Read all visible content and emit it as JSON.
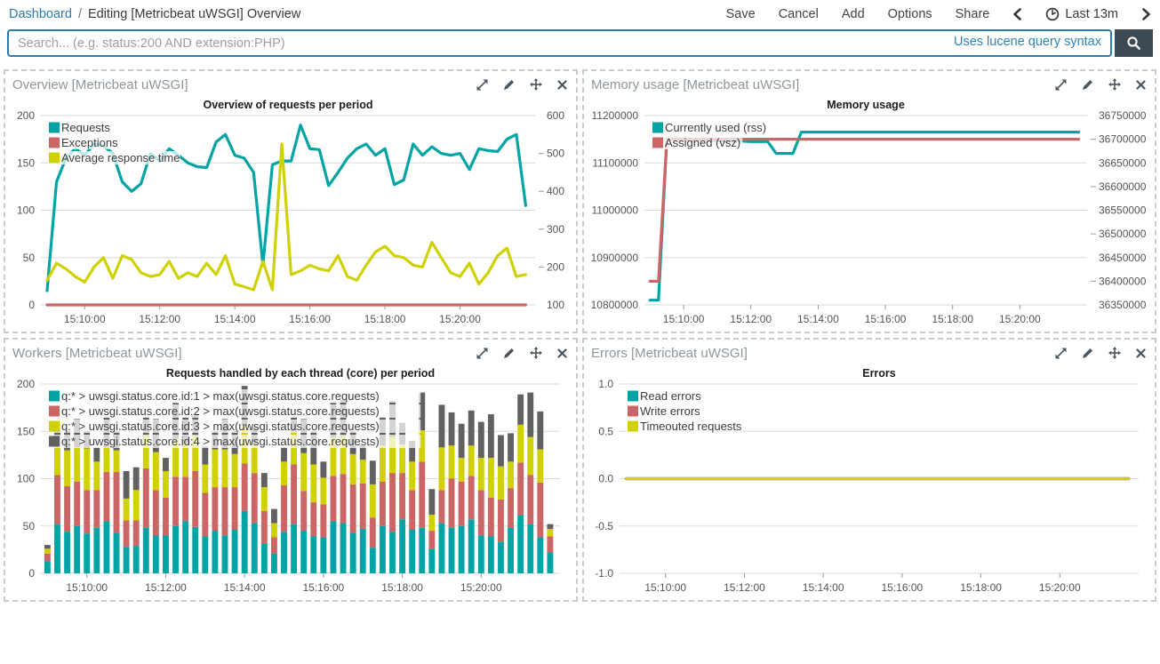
{
  "topnav": {
    "breadcrumb": {
      "root": "Dashboard",
      "separator": "/",
      "current": "Editing [Metricbeat uWSGI] Overview"
    },
    "actions": [
      "Save",
      "Cancel",
      "Add",
      "Options",
      "Share"
    ],
    "time_label": "Last 13m"
  },
  "search": {
    "placeholder": "Search... (e.g. status:200 AND extension:PHP)",
    "hint": "Uses lucene query syntax"
  },
  "colors": {
    "link_blue": "#2a7ab0",
    "search_border": "#2d7cb0",
    "search_button_bg": "#3e4a53",
    "panel_title_gray": "#8e979e",
    "series_teal": "#01A4A4",
    "series_red": "#CC6666",
    "series_yellow": "#D0D102",
    "series_gray": "#616161"
  },
  "panels": [
    {
      "title": "Overview [Metricbeat uWSGI]"
    },
    {
      "title": "Memory usage [Metricbeat uWSGI]"
    },
    {
      "title": "Workers [Metricbeat uWSGI]"
    },
    {
      "title": "Errors [Metricbeat uWSGI]"
    }
  ],
  "chart_data": [
    {
      "type": "line",
      "title": "Overview of requests per period",
      "x_start": "15:09:00",
      "interval_s": 15,
      "x_domain": [
        "15:08:50",
        "15:22:00"
      ],
      "x_ticks": [
        "15:10:00",
        "15:12:00",
        "15:14:00",
        "15:16:00",
        "15:18:00",
        "15:20:00"
      ],
      "grid": true,
      "legend_position": "top-left",
      "layout": {
        "margins": {
          "t": 22,
          "r": 46,
          "b": 30,
          "l": 40
        }
      },
      "axes": {
        "left": {
          "min": 0,
          "max": 200,
          "ticks": [
            0,
            50,
            100,
            150,
            200
          ],
          "decimals": 0
        },
        "right": {
          "min": 100,
          "max": 600,
          "ticks": [
            100,
            200,
            300,
            400,
            500,
            600
          ],
          "decimals": 0
        }
      },
      "series": [
        {
          "name": "Requests",
          "color": "#01A4A4",
          "axis": "left",
          "values": [
            15,
            130,
            155,
            165,
            158,
            170,
            168,
            160,
            130,
            120,
            128,
            160,
            152,
            165,
            158,
            150,
            146,
            145,
            172,
            180,
            158,
            155,
            140,
            42,
            148,
            152,
            152,
            190,
            165,
            164,
            126,
            140,
            155,
            165,
            170,
            158,
            165,
            127,
            132,
            170,
            158,
            167,
            160,
            158,
            160,
            143,
            165,
            163,
            162,
            175,
            180,
            105
          ]
        },
        {
          "name": "Exceptions",
          "color": "#CC6666",
          "axis": "left",
          "values": [
            0,
            0,
            0,
            0,
            0,
            0,
            0,
            0,
            0,
            0,
            0,
            0,
            0,
            0,
            0,
            0,
            0,
            0,
            0,
            0,
            0,
            0,
            0,
            0,
            0,
            0,
            0,
            0,
            0,
            0,
            0,
            0,
            0,
            0,
            0,
            0,
            0,
            0,
            0,
            0,
            0,
            0,
            0,
            0,
            0,
            0,
            0,
            0,
            0,
            0,
            0,
            0
          ]
        },
        {
          "name": "Average response time",
          "color": "#D0D102",
          "axis": "right",
          "values": [
            165,
            210,
            195,
            175,
            160,
            200,
            225,
            170,
            230,
            220,
            185,
            175,
            180,
            215,
            170,
            185,
            175,
            210,
            180,
            230,
            155,
            148,
            140,
            215,
            140,
            525,
            180,
            190,
            205,
            195,
            190,
            230,
            175,
            165,
            205,
            240,
            255,
            230,
            225,
            205,
            200,
            265,
            225,
            185,
            175,
            210,
            155,
            185,
            230,
            250,
            175,
            180
          ]
        }
      ]
    },
    {
      "type": "line",
      "title": "Memory usage",
      "x_start": "15:09:00",
      "interval_s": 15,
      "x_domain": [
        "15:08:50",
        "15:22:00"
      ],
      "x_ticks": [
        "15:10:00",
        "15:12:00",
        "15:14:00",
        "15:16:00",
        "15:18:00",
        "15:20:00"
      ],
      "grid": true,
      "legend_position": "top-left",
      "layout": {
        "margins": {
          "t": 22,
          "r": 76,
          "b": 30,
          "l": 68
        }
      },
      "axes": {
        "left": {
          "min": 10800000,
          "max": 11200000,
          "ticks": [
            10800000,
            10900000,
            11000000,
            11100000,
            11200000
          ],
          "decimals": 0
        },
        "right": {
          "min": 36350000,
          "max": 36750000,
          "ticks": [
            36350000,
            36400000,
            36450000,
            36500000,
            36550000,
            36600000,
            36650000,
            36700000,
            36750000
          ],
          "decimals": 0
        }
      },
      "series": [
        {
          "name": "Currently used (rss)",
          "color": "#01A4A4",
          "axis": "left",
          "values": [
            10810000,
            10810000,
            11150000,
            11150000,
            11149000,
            11148000,
            11148000,
            11147000,
            11147000,
            11146000,
            11146000,
            11146000,
            11145000,
            11145000,
            11145000,
            11120000,
            11120000,
            11120000,
            11165000,
            11165000,
            11165000,
            11165000,
            11165000,
            11165000,
            11165000,
            11165000,
            11165000,
            11165000,
            11165000,
            11165000,
            11165000,
            11165000,
            11165000,
            11165000,
            11165000,
            11165000,
            11165000,
            11165000,
            11165000,
            11165000,
            11165000,
            11165000,
            11165000,
            11165000,
            11165000,
            11165000,
            11165000,
            11165000,
            11165000,
            11165000,
            11165000,
            11165000
          ]
        },
        {
          "name": "Assigned (vsz)",
          "color": "#CC6666",
          "axis": "right",
          "values": [
            36400000,
            36400000,
            36700000,
            36700000,
            36700000,
            36700000,
            36700000,
            36700000,
            36700000,
            36700000,
            36700000,
            36700000,
            36700000,
            36700000,
            36700000,
            36700000,
            36700000,
            36700000,
            36700000,
            36700000,
            36700000,
            36700000,
            36700000,
            36700000,
            36700000,
            36700000,
            36700000,
            36700000,
            36700000,
            36700000,
            36700000,
            36700000,
            36700000,
            36700000,
            36700000,
            36700000,
            36700000,
            36700000,
            36700000,
            36700000,
            36700000,
            36700000,
            36700000,
            36700000,
            36700000,
            36700000,
            36700000,
            36700000,
            36700000,
            36700000,
            36700000,
            36700000
          ]
        }
      ]
    },
    {
      "type": "bar",
      "title": "Requests handled by each thread (core) per period",
      "x_start": "15:09:00",
      "interval_s": 15,
      "x_domain": [
        "15:08:50",
        "15:22:00"
      ],
      "x_ticks": [
        "15:10:00",
        "15:12:00",
        "15:14:00",
        "15:16:00",
        "15:18:00",
        "15:20:00"
      ],
      "grid": true,
      "stacked": true,
      "legend_position": "top-left",
      "layout": {
        "margins": {
          "t": 22,
          "r": 18,
          "b": 30,
          "l": 40
        }
      },
      "axes": {
        "left": {
          "min": 0,
          "max": 200,
          "ticks": [
            0,
            50,
            100,
            150,
            200
          ],
          "decimals": 0
        }
      },
      "series": [
        {
          "name": "q:* > uwsgi.status.core.id:1 > max(uwsgi.status.core.requests)",
          "color": "#01A4A4",
          "axis": "left",
          "values": [
            13,
            52,
            44,
            50,
            42,
            48,
            55,
            43,
            28,
            29,
            48,
            40,
            40,
            50,
            55,
            49,
            39,
            45,
            40,
            46,
            66,
            53,
            31,
            21,
            44,
            52,
            45,
            39,
            38,
            55,
            53,
            43,
            47,
            27,
            50,
            44,
            57,
            46,
            48,
            26,
            53,
            48,
            50,
            57,
            40,
            39,
            33,
            48,
            61,
            52,
            38,
            22
          ]
        },
        {
          "name": "q:* > uwsgi.status.core.id:2 > max(uwsgi.status.core.requests)",
          "color": "#CC6666",
          "axis": "left",
          "values": [
            8,
            52,
            48,
            47,
            46,
            40,
            52,
            64,
            28,
            27,
            63,
            48,
            40,
            52,
            47,
            59,
            46,
            46,
            51,
            45,
            50,
            53,
            35,
            17,
            49,
            63,
            42,
            36,
            35,
            48,
            52,
            51,
            48,
            32,
            47,
            62,
            49,
            42,
            70,
            19,
            35,
            52,
            47,
            46,
            48,
            41,
            45,
            42,
            56,
            52,
            58,
            17
          ]
        },
        {
          "name": "q:* > uwsgi.status.core.id:3 > max(uwsgi.status.core.requests)",
          "color": "#D0D102",
          "axis": "left",
          "values": [
            5,
            30,
            38,
            36,
            44,
            30,
            26,
            23,
            23,
            32,
            35,
            40,
            28,
            40,
            35,
            37,
            30,
            40,
            40,
            35,
            40,
            30,
            25,
            15,
            25,
            35,
            40,
            40,
            28,
            40,
            40,
            32,
            25,
            35,
            38,
            38,
            30,
            30,
            33,
            17,
            45,
            35,
            25,
            32,
            34,
            42,
            35,
            28,
            40,
            40,
            35,
            8
          ]
        },
        {
          "name": "q:* > uwsgi.status.core.id:4 > max(uwsgi.status.core.requests)",
          "color": "#616161",
          "axis": "left",
          "values": [
            4,
            26,
            20,
            30,
            18,
            15,
            32,
            20,
            29,
            24,
            19,
            35,
            14,
            38,
            28,
            22,
            19,
            19,
            32,
            24,
            42,
            19,
            15,
            15,
            15,
            15,
            36,
            35,
            17,
            37,
            38,
            24,
            15,
            25,
            30,
            38,
            23,
            22,
            40,
            27,
            45,
            35,
            36,
            37,
            38,
            46,
            33,
            30,
            32,
            47,
            40,
            5
          ]
        }
      ]
    },
    {
      "type": "line",
      "title": "Errors",
      "x_start": "15:09:00",
      "interval_s": 15,
      "x_domain": [
        "15:08:50",
        "15:22:00"
      ],
      "x_ticks": [
        "15:10:00",
        "15:12:00",
        "15:14:00",
        "15:16:00",
        "15:18:00",
        "15:20:00"
      ],
      "grid": true,
      "legend_position": "top-left",
      "layout": {
        "margins": {
          "t": 22,
          "r": 18,
          "b": 30,
          "l": 40
        }
      },
      "axes": {
        "left": {
          "min": -1,
          "max": 1,
          "ticks": [
            -1,
            -0.5,
            0,
            0.5,
            1
          ],
          "decimals": 1
        }
      },
      "series": [
        {
          "name": "Read errors",
          "color": "#01A4A4",
          "axis": "left",
          "values": [
            0,
            0,
            0,
            0,
            0,
            0,
            0,
            0,
            0,
            0,
            0,
            0,
            0,
            0,
            0,
            0,
            0,
            0,
            0,
            0,
            0,
            0,
            0,
            0,
            0,
            0,
            0,
            0,
            0,
            0,
            0,
            0,
            0,
            0,
            0,
            0,
            0,
            0,
            0,
            0,
            0,
            0,
            0,
            0,
            0,
            0,
            0,
            0,
            0,
            0,
            0,
            0
          ]
        },
        {
          "name": "Write errors",
          "color": "#CC6666",
          "axis": "left",
          "values": [
            0,
            0,
            0,
            0,
            0,
            0,
            0,
            0,
            0,
            0,
            0,
            0,
            0,
            0,
            0,
            0,
            0,
            0,
            0,
            0,
            0,
            0,
            0,
            0,
            0,
            0,
            0,
            0,
            0,
            0,
            0,
            0,
            0,
            0,
            0,
            0,
            0,
            0,
            0,
            0,
            0,
            0,
            0,
            0,
            0,
            0,
            0,
            0,
            0,
            0,
            0,
            0
          ]
        },
        {
          "name": "Timeouted requests",
          "color": "#D0D102",
          "axis": "left",
          "values": [
            0,
            0,
            0,
            0,
            0,
            0,
            0,
            0,
            0,
            0,
            0,
            0,
            0,
            0,
            0,
            0,
            0,
            0,
            0,
            0,
            0,
            0,
            0,
            0,
            0,
            0,
            0,
            0,
            0,
            0,
            0,
            0,
            0,
            0,
            0,
            0,
            0,
            0,
            0,
            0,
            0,
            0,
            0,
            0,
            0,
            0,
            0,
            0,
            0,
            0,
            0,
            0
          ]
        }
      ]
    }
  ]
}
